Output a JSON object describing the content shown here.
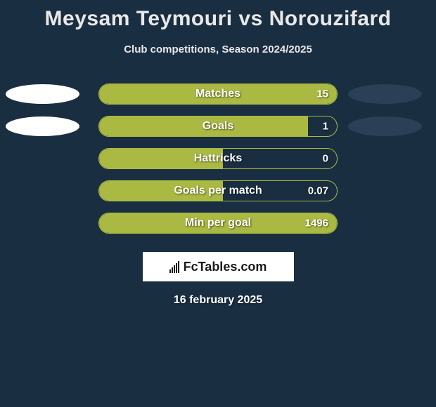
{
  "title": "Meysam Teymouri vs Norouzifard",
  "subtitle": "Club competitions, Season 2024/2025",
  "background_color": "#1a2e42",
  "bar_color": "#aab942",
  "oval_left_color": "#ffffff",
  "oval_right_color": "#2b4056",
  "bar_track_width": 340,
  "rows": [
    {
      "label": "Matches",
      "value": "15",
      "fill": "full",
      "pct": 100,
      "show_ovals": true
    },
    {
      "label": "Goals",
      "value": "1",
      "fill": "left",
      "pct": 88,
      "show_ovals": true
    },
    {
      "label": "Hattricks",
      "value": "0",
      "fill": "left",
      "pct": 52,
      "show_ovals": false
    },
    {
      "label": "Goals per match",
      "value": "0.07",
      "fill": "left",
      "pct": 52,
      "show_ovals": false
    },
    {
      "label": "Min per goal",
      "value": "1496",
      "fill": "full",
      "pct": 100,
      "show_ovals": false
    }
  ],
  "logo_text": "FcTables.com",
  "date": "16 february 2025"
}
